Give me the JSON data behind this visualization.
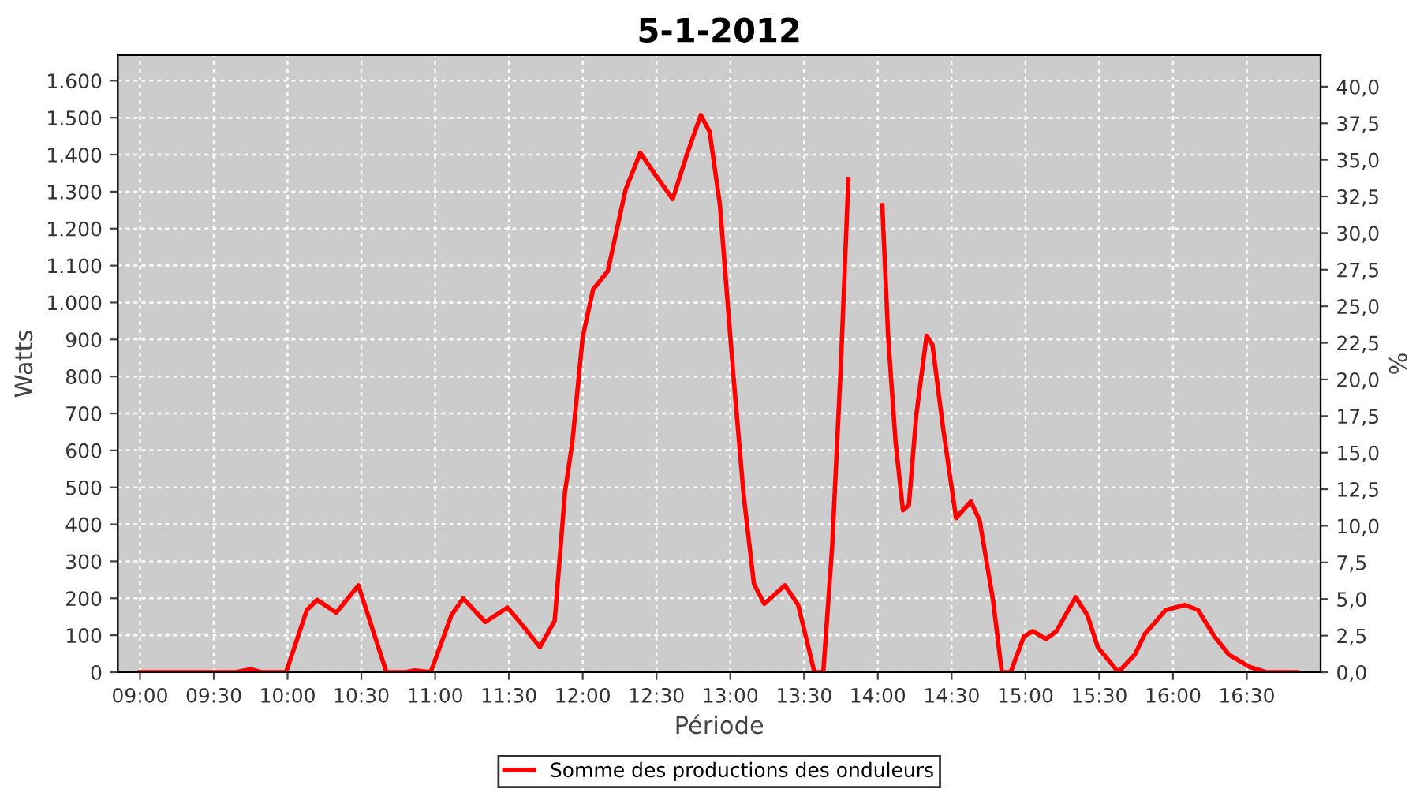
{
  "chart_data": {
    "type": "line",
    "title": "5-1-2012",
    "xlabel": "Période",
    "ylabel": "Watts",
    "y2label": "%",
    "xlim": [
      8.85,
      17.0
    ],
    "xticks": [
      {
        "value": 9,
        "label": "09:00"
      },
      {
        "value": 9.5,
        "label": "09:30"
      },
      {
        "value": 10,
        "label": "10:00"
      },
      {
        "value": 10.5,
        "label": "10:30"
      },
      {
        "value": 11,
        "label": "11:00"
      },
      {
        "value": 11.5,
        "label": "11:30"
      },
      {
        "value": 12,
        "label": "12:00"
      },
      {
        "value": 12.5,
        "label": "12:30"
      },
      {
        "value": 13,
        "label": "13:00"
      },
      {
        "value": 13.5,
        "label": "13:30"
      },
      {
        "value": 14,
        "label": "14:00"
      },
      {
        "value": 14.5,
        "label": "14:30"
      },
      {
        "value": 15,
        "label": "15:00"
      },
      {
        "value": 15.5,
        "label": "15:30"
      },
      {
        "value": 16,
        "label": "16:00"
      },
      {
        "value": 16.5,
        "label": "16:30"
      }
    ],
    "ylim": [
      0,
      1669
    ],
    "yticks": [
      0,
      100,
      200,
      300,
      400,
      500,
      600,
      700,
      800,
      900,
      {
        "value": 1000,
        "label": "1.000"
      },
      {
        "value": 1100,
        "label": "1.100"
      },
      {
        "value": 1200,
        "label": "1.200"
      },
      {
        "value": 1300,
        "label": "1.300"
      },
      {
        "value": 1400,
        "label": "1.400"
      },
      {
        "value": 1500,
        "label": "1.500"
      },
      {
        "value": 1600,
        "label": "1.600"
      }
    ],
    "y2lim": [
      0,
      42.15
    ],
    "y2ticks": [
      {
        "value": 0,
        "label": "0,0"
      },
      {
        "value": 2.5,
        "label": "2,5"
      },
      {
        "value": 5,
        "label": "5,0"
      },
      {
        "value": 7.5,
        "label": "7,5"
      },
      {
        "value": 10,
        "label": "10,0"
      },
      {
        "value": 12.5,
        "label": "12,5"
      },
      {
        "value": 15,
        "label": "15,0"
      },
      {
        "value": 17.5,
        "label": "17,5"
      },
      {
        "value": 20,
        "label": "20,0"
      },
      {
        "value": 22.5,
        "label": "22,5"
      },
      {
        "value": 25,
        "label": "25,0"
      },
      {
        "value": 27.5,
        "label": "27,5"
      },
      {
        "value": 30,
        "label": "30,0"
      },
      {
        "value": 32.5,
        "label": "32,5"
      },
      {
        "value": 35,
        "label": "35,0"
      },
      {
        "value": 37.5,
        "label": "37,5"
      },
      {
        "value": 40,
        "label": "40,0"
      }
    ],
    "grid": true,
    "legend": "bottom",
    "line_style": "solid",
    "marker": "none",
    "series": [
      {
        "name": "Somme des productions des onduleurs",
        "color": "#ff0000",
        "x": [
          9.0,
          9.65,
          9.75,
          9.82,
          9.99,
          10.13,
          10.2,
          10.33,
          10.48,
          10.67,
          10.8,
          10.86,
          10.97,
          11.11,
          11.19,
          11.34,
          11.49,
          11.59,
          11.71,
          11.81,
          11.88,
          11.93,
          12.0,
          12.07,
          12.17,
          12.29,
          12.39,
          12.5,
          12.61,
          12.71,
          12.8,
          12.86,
          12.93,
          13.02,
          13.09,
          13.16,
          13.23,
          13.37,
          13.46,
          13.57,
          13.63,
          13.69,
          13.75,
          13.8,
          13.85,
          13.915,
          13.98,
          14.03,
          14.07,
          14.12,
          14.17,
          14.21,
          14.26,
          14.33,
          14.37,
          14.44,
          14.53,
          14.63,
          14.69,
          14.78,
          14.84,
          14.9,
          14.99,
          15.05,
          15.14,
          15.21,
          15.34,
          15.42,
          15.49,
          15.63,
          15.74,
          15.81,
          15.95,
          16.08,
          16.17,
          16.28,
          16.38,
          16.52,
          16.63,
          16.84
        ],
        "values": [
          0,
          0,
          8,
          0,
          0,
          168,
          196,
          161,
          235,
          0,
          0,
          5,
          0,
          154,
          200,
          136,
          175,
          128,
          68,
          139,
          488,
          623,
          907,
          1035,
          1085,
          1305,
          1405,
          1341,
          1280,
          1405,
          1507,
          1462,
          1263,
          808,
          481,
          239,
          185,
          235,
          182,
          0,
          0,
          338,
          836,
          1334,
          null,
          null,
          null,
          1263,
          907,
          623,
          438,
          452,
          694,
          910,
          886,
          666,
          417,
          462,
          410,
          196,
          0,
          0,
          97,
          111,
          90,
          111,
          203,
          154,
          68,
          0,
          47,
          104,
          168,
          182,
          168,
          97,
          47,
          14,
          0,
          0
        ]
      }
    ]
  }
}
